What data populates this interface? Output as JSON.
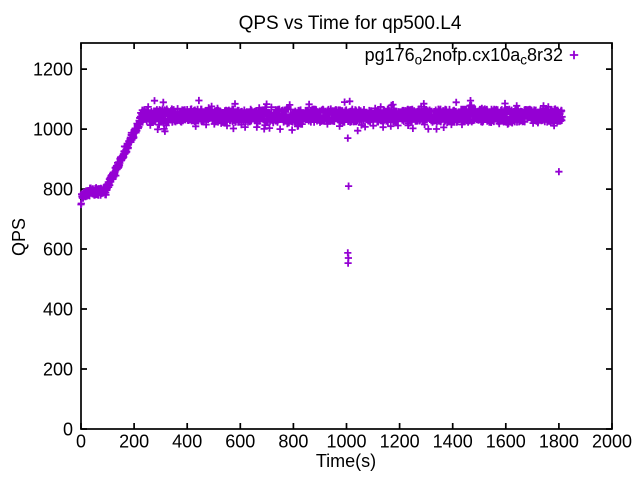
{
  "window": {
    "background": "#FFFFFF"
  },
  "chart_data": {
    "type": "scatter",
    "title": "QPS vs Time for qp500.L4",
    "xlabel": "Time(s)",
    "ylabel": "QPS",
    "xlim": [
      0,
      2000
    ],
    "ylim": [
      0,
      1287
    ],
    "xticks": [
      0,
      200,
      400,
      600,
      800,
      1000,
      1200,
      1400,
      1600,
      1800,
      2000
    ],
    "yticks": [
      0,
      200,
      400,
      600,
      800,
      1000,
      1200
    ],
    "grid": false,
    "tick_style": "inward, mirrored on top and right borders",
    "background_color": "#FFFFFF",
    "axis_color": "#000000",
    "text_color": "#000000",
    "legend": {
      "position": "top-right-inside",
      "entries": [
        {
          "label": "pg176_o2nofp.cx10a_c8r32",
          "label_parts": [
            {
              "text": "pg176",
              "sub": false
            },
            {
              "text": "o",
              "sub": true
            },
            {
              "text": "2nofp.cx10a",
              "sub": false
            },
            {
              "text": "c",
              "sub": true
            },
            {
              "text": "8r32",
              "sub": false
            }
          ],
          "marker": "plus",
          "color": "#9400D3"
        }
      ]
    },
    "series": [
      {
        "name": "pg176_o2nofp.cx10a_c8r32",
        "marker": "plus",
        "color": "#9400D3",
        "point_count_estimate": 1813,
        "sampling_note": "approximately one sample per second from t=0s to t=1812s; envelopes read from plot",
        "render_seed": 7,
        "plateau_qps_mean": 1045,
        "segments": [
          {
            "t_start": 0,
            "t_end": 8,
            "points": 8,
            "qps_start": 764,
            "qps_end": 778,
            "jitter": 16,
            "spike_prob": 0,
            "spike_mag": 0,
            "down_bias": 0.5
          },
          {
            "t_start": 9,
            "t_end": 94,
            "points": 86,
            "qps_start": 787,
            "qps_end": 794,
            "jitter": 15,
            "spike_prob": 0.2,
            "spike_mag": 12,
            "down_bias": 0.4
          },
          {
            "t_start": 95,
            "t_end": 224,
            "points": 130,
            "qps_start": 800,
            "qps_end": 1030,
            "jitter": 13,
            "spike_prob": 0.1,
            "spike_mag": 15,
            "down_bias": 0.5
          },
          {
            "t_start": 225,
            "t_end": 1812,
            "points": 1588,
            "qps_start": 1045,
            "qps_end": 1045,
            "jitter": 22,
            "spike_prob": 0.16,
            "spike_mag": 32,
            "down_bias": 0.6
          }
        ],
        "outliers": [
          [
            1005,
            970
          ],
          [
            1008,
            810
          ],
          [
            1005,
            587
          ],
          [
            1007,
            570
          ],
          [
            1006,
            553
          ],
          [
            1800,
            858
          ]
        ]
      }
    ]
  }
}
